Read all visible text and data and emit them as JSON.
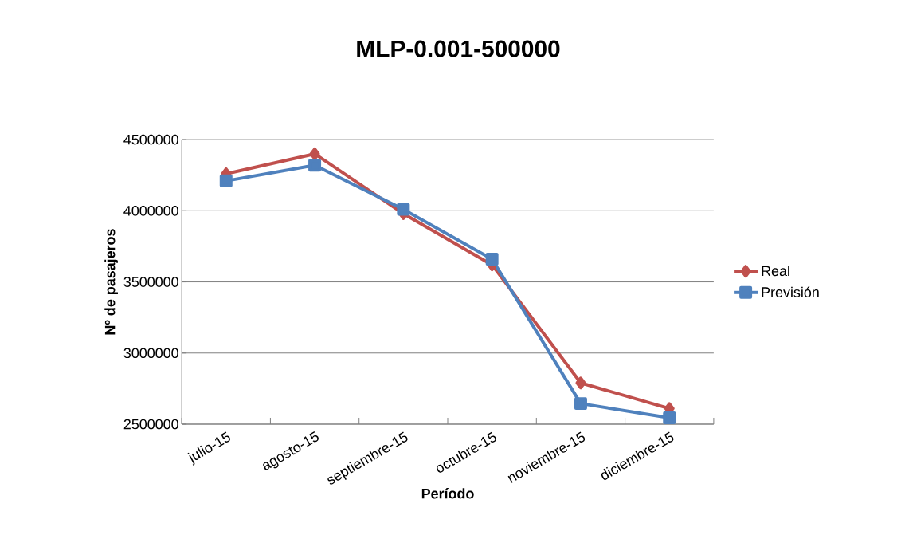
{
  "chart_data": {
    "type": "line",
    "title": "MLP-0.001-500000",
    "xlabel": "Período",
    "ylabel": "Nº de pasajeros",
    "categories": [
      "julio-15",
      "agosto-15",
      "septiembre-15",
      "octubre-15",
      "noviembre-15",
      "diciembre-15"
    ],
    "series": [
      {
        "name": "Real",
        "color": "#c0504d",
        "marker": "diamond",
        "values": [
          4260000,
          4400000,
          3980000,
          3620000,
          2790000,
          2610000
        ]
      },
      {
        "name": "Previsión",
        "color": "#4f81bd",
        "marker": "square",
        "values": [
          4210000,
          4320000,
          4010000,
          3660000,
          2645000,
          2545000
        ]
      }
    ],
    "ylim": [
      2500000,
      4500000
    ],
    "yticks": [
      2500000,
      3000000,
      3500000,
      4000000,
      4500000
    ],
    "grid": "y",
    "legend": "right",
    "line_style": "solid"
  }
}
